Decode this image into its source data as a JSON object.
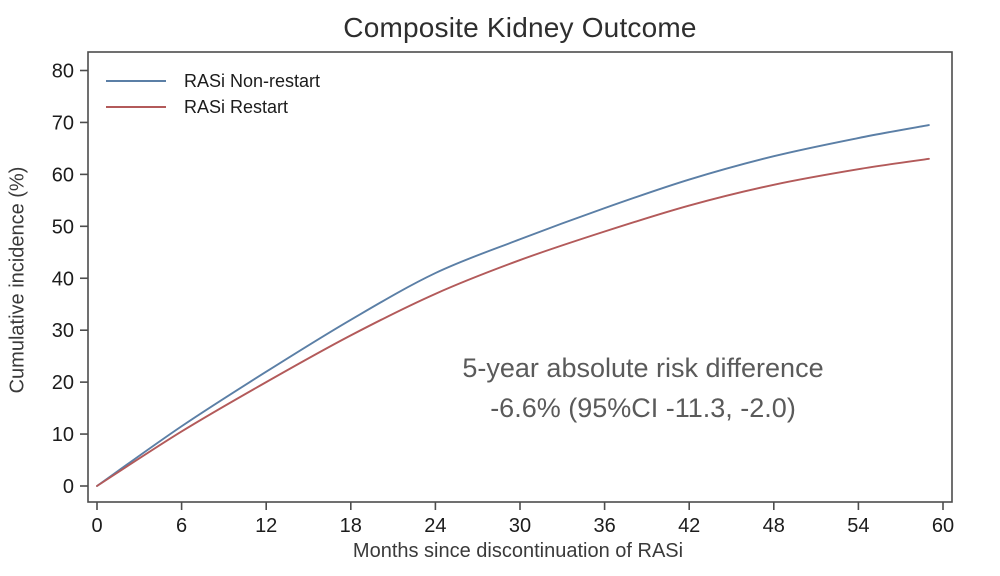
{
  "chart_data": {
    "type": "line",
    "title": "Composite Kidney Outcome",
    "xlabel": "Months since discontinuation of RASi",
    "ylabel": "Cumulative incidence (%)",
    "xlim": [
      0,
      60
    ],
    "ylim": [
      0,
      80
    ],
    "x_ticks": [
      0,
      6,
      12,
      18,
      24,
      30,
      36,
      42,
      48,
      54,
      60
    ],
    "y_ticks": [
      0,
      10,
      20,
      30,
      40,
      50,
      60,
      70,
      80
    ],
    "grid": false,
    "legend_position": "top-left-inside",
    "x": [
      0,
      6,
      12,
      18,
      24,
      30,
      36,
      42,
      48,
      54,
      59
    ],
    "series": [
      {
        "name": "RASi Non-restart",
        "color": "#5b7fa6",
        "values": [
          0,
          11.5,
          22,
          32,
          41,
          47.5,
          53.5,
          59,
          63.5,
          67,
          69.5
        ]
      },
      {
        "name": "RASi Restart",
        "color": "#b35a5a",
        "values": [
          0,
          10.5,
          20,
          29,
          37,
          43.5,
          49,
          54,
          58,
          61,
          63
        ]
      }
    ],
    "annotation": {
      "line1": "5-year absolute risk difference",
      "line2": "-6.6% (95%CI -11.3, -2.0)"
    }
  },
  "colors": {
    "frame": "#4d4d4d",
    "tick_text": "#1c1c1c",
    "annotation_text": "#5a5a5a",
    "background": "#ffffff"
  }
}
